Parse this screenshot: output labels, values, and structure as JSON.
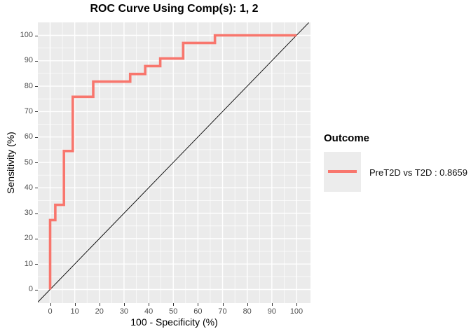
{
  "title": "ROC Curve Using Comp(s): 1, 2",
  "axes": {
    "x": {
      "label": "100 - Specificity (%)",
      "ticks": [
        0,
        10,
        20,
        30,
        40,
        50,
        60,
        70,
        80,
        90,
        100
      ]
    },
    "y": {
      "label": "Sensitivity (%)",
      "ticks": [
        0,
        10,
        20,
        30,
        40,
        50,
        60,
        70,
        80,
        90,
        100
      ]
    }
  },
  "legend": {
    "title": "Outcome",
    "items": [
      {
        "label": "PreT2D vs T2D : 0.8659",
        "color": "#F8766D"
      }
    ]
  },
  "chart_data": {
    "type": "line",
    "subtype": "roc-step-curve",
    "title": "ROC Curve Using Comp(s): 1, 2",
    "xlabel": "100 - Specificity (%)",
    "ylabel": "Sensitivity (%)",
    "xlim": [
      -5,
      105
    ],
    "ylim": [
      -5,
      105
    ],
    "x_ticks": [
      0,
      10,
      20,
      30,
      40,
      50,
      60,
      70,
      80,
      90,
      100
    ],
    "y_ticks": [
      0,
      10,
      20,
      30,
      40,
      50,
      60,
      70,
      80,
      90,
      100
    ],
    "grid": "white major and minor gridlines on grey panel",
    "legend_position": "right",
    "series": [
      {
        "name": "PreT2D vs T2D : 0.8659",
        "auc": 0.8659,
        "color": "#F8766D",
        "points": [
          [
            0,
            0
          ],
          [
            0,
            27.3
          ],
          [
            2.1,
            27.3
          ],
          [
            2.1,
            33.3
          ],
          [
            5.6,
            33.3
          ],
          [
            5.6,
            54.5
          ],
          [
            9.2,
            54.5
          ],
          [
            9.2,
            75.8
          ],
          [
            17.5,
            75.8
          ],
          [
            17.5,
            81.8
          ],
          [
            32.5,
            81.8
          ],
          [
            32.5,
            84.8
          ],
          [
            38.6,
            84.8
          ],
          [
            38.6,
            87.9
          ],
          [
            44.7,
            87.9
          ],
          [
            44.7,
            90.9
          ],
          [
            54,
            90.9
          ],
          [
            54,
            97
          ],
          [
            66.9,
            97
          ],
          [
            66.9,
            100
          ],
          [
            100,
            100
          ]
        ]
      },
      {
        "name": "chance-diagonal",
        "color": "#000000",
        "points": [
          [
            -5,
            -5
          ],
          [
            105,
            105
          ]
        ]
      }
    ]
  },
  "colors": {
    "curve": "#F8766D",
    "panel_background": "#EBEBEB",
    "legend_key_background": "#ECECEC",
    "gridline": "#FFFFFF",
    "diagonal": "#000000",
    "tick_label": "#4D4D4D",
    "text": "#000000",
    "background": "#FFFFFF"
  }
}
